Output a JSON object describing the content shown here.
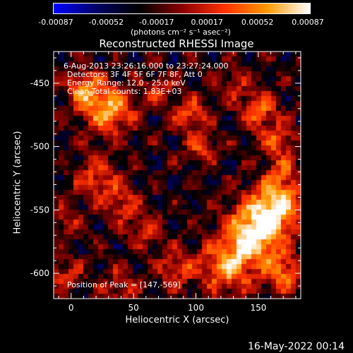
{
  "colorbar": {
    "tick_labels": [
      "-0.00087",
      "-0.00052",
      "-0.00017",
      "0.00017",
      "0.00052",
      "0.00087"
    ],
    "unit_label": "(photons cm⁻² s⁻¹ asec⁻²)",
    "colors": [
      "#0000ff",
      "#000066",
      "#000000",
      "#8b0000",
      "#ff3300",
      "#ff9900",
      "#ffffff"
    ]
  },
  "chart_data": {
    "type": "heatmap",
    "title": "Reconstructed RHESSI Image",
    "xlabel": "Heliocentric X (arcsec)",
    "ylabel": "Heliocentric Y (arcsec)",
    "xlim": [
      -14,
      184
    ],
    "ylim": [
      -620,
      -425
    ],
    "x_ticks": [
      0,
      50,
      100,
      150
    ],
    "y_ticks": [
      -450,
      -500,
      -550,
      -600
    ],
    "x_tick_labels": [
      "0",
      "50",
      "100",
      "150"
    ],
    "y_tick_labels": [
      "-450",
      "-500",
      "-550",
      "-600"
    ],
    "color_range": [
      -0.00087,
      0.00087
    ],
    "peak_position": [
      147,
      -569
    ]
  },
  "annotations": {
    "time_range": "6-Aug-2013 23:26:16.000 to 23:27:24.000",
    "detectors": "Detectors: 3F 4F 5F 6F 7F 8F, Att 0",
    "energy": "Energy Range: 12.0 - 25.0 keV",
    "clean": "Clean     Total counts: 1.83E+03",
    "peak": "Position of Peak = [147,-569]"
  },
  "footer": {
    "date": "16-May-2022 00:14"
  }
}
